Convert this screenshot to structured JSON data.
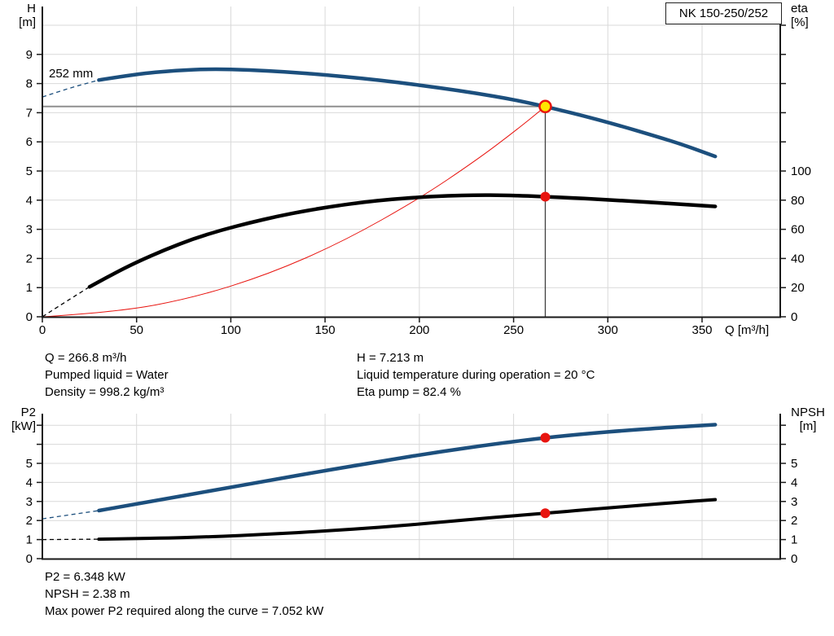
{
  "title_box": {
    "label": "NK 150-250/252"
  },
  "impeller_trim_label": "252 mm",
  "axes_titles": {
    "h1": "H",
    "h2": "[m]",
    "eta1": "eta",
    "eta2": "[%]",
    "q": "Q [m³/h]",
    "p2a": "P2",
    "p2b": "[kW]",
    "npsh1": "NPSH",
    "npsh2": "[m]"
  },
  "duty_info": {
    "q": "Q = 266.8 m³/h",
    "pumped_liquid": "Pumped liquid = Water",
    "density": "Density = 998.2 kg/m³",
    "h": "H = 7.213 m",
    "liquid_temp": "Liquid temperature during operation = 20 °C",
    "eta_pump": "Eta pump = 82.4 %"
  },
  "power_info": {
    "p2": "P2 = 6.348 kW",
    "npsh": "NPSH = 2.38 m",
    "max_p2": "Max power P2 required along the curve = 7.052 kW"
  },
  "colors": {
    "curve_blue": "#1c4f7d",
    "curve_black": "#000000",
    "red": "#e8140f",
    "marker_yellow": "#ffe600",
    "gridline": "#d9d9d9",
    "crosshair_h": "#8f8f8f",
    "crosshair_v": "#3f3f3f",
    "axis": "#1a1a1a"
  },
  "chart_data": [
    {
      "type": "line",
      "title": "NK 150-250/252",
      "xlabel": "Q [m³/h]",
      "ylabel_left": "H [m]",
      "ylabel_right": "eta [%]",
      "x_range": [
        0,
        391
      ],
      "x_ticks": [
        0,
        50,
        100,
        150,
        200,
        250,
        300,
        350
      ],
      "y_left_range": [
        0,
        10.6
      ],
      "y_left_ticks": [
        0,
        1,
        2,
        3,
        4,
        5,
        6,
        7,
        8,
        9
      ],
      "y_left_gridlines": [
        1,
        2,
        3,
        4,
        5,
        6,
        7,
        8,
        9,
        10
      ],
      "y_right_range": [
        0,
        100
      ],
      "y_right_ticks": [
        0,
        20,
        40,
        60,
        80,
        100
      ],
      "grid": true,
      "annotation": "252 mm",
      "series": [
        {
          "name": "head-curve-252mm",
          "axis": "left",
          "role": "head",
          "dash_until": 30,
          "points": [
            [
              0,
              7.54
            ],
            [
              15,
              7.86
            ],
            [
              30,
              8.12
            ],
            [
              50,
              8.33
            ],
            [
              70,
              8.45
            ],
            [
              90,
              8.5
            ],
            [
              110,
              8.47
            ],
            [
              130,
              8.4
            ],
            [
              150,
              8.3
            ],
            [
              170,
              8.18
            ],
            [
              190,
              8.03
            ],
            [
              210,
              7.86
            ],
            [
              230,
              7.67
            ],
            [
              250,
              7.45
            ],
            [
              266.8,
              7.213
            ],
            [
              285,
              6.93
            ],
            [
              305,
              6.58
            ],
            [
              325,
              6.2
            ],
            [
              340,
              5.9
            ],
            [
              357,
              5.5
            ]
          ]
        },
        {
          "name": "efficiency-curve",
          "axis": "right",
          "role": "efficiency",
          "dash_until": 25,
          "points": [
            [
              0,
              0
            ],
            [
              12,
              10
            ],
            [
              25,
              20.5
            ],
            [
              37,
              29
            ],
            [
              50,
              37.5
            ],
            [
              65,
              46
            ],
            [
              80,
              53.5
            ],
            [
              95,
              59.5
            ],
            [
              110,
              64.5
            ],
            [
              125,
              69
            ],
            [
              140,
              72.8
            ],
            [
              155,
              76
            ],
            [
              170,
              78.6
            ],
            [
              185,
              80.6
            ],
            [
              200,
              82
            ],
            [
              215,
              83
            ],
            [
              230,
              83.5
            ],
            [
              245,
              83.4
            ],
            [
              258,
              82.9
            ],
            [
              266.8,
              82.4
            ],
            [
              280,
              81.6
            ],
            [
              295,
              80.6
            ],
            [
              310,
              79.5
            ],
            [
              325,
              78.3
            ],
            [
              340,
              77.1
            ],
            [
              357,
              75.7
            ]
          ]
        },
        {
          "name": "affinity-parabola",
          "axis": "left",
          "role": "affinity",
          "dash_until": 0,
          "points": [
            [
              0,
              0
            ],
            [
              40,
              0.162
            ],
            [
              80,
              0.649
            ],
            [
              120,
              1.459
            ],
            [
              160,
              2.594
            ],
            [
              200,
              4.053
            ],
            [
              230,
              5.36
            ],
            [
              250,
              6.333
            ],
            [
              266.8,
              7.213
            ]
          ]
        }
      ],
      "duty_point": {
        "q": 266.8,
        "h": 7.213,
        "eta": 82.4
      }
    },
    {
      "type": "line",
      "title": "",
      "xlabel": "",
      "ylabel_left": "P2 [kW]",
      "ylabel_right": "NPSH [m]",
      "x_range": [
        0,
        391
      ],
      "x_gridlines": [
        50,
        100,
        150,
        200,
        250,
        300,
        350
      ],
      "y_range": [
        0,
        7.56
      ],
      "y_ticks_labeled": [
        0,
        1,
        2,
        3,
        4,
        5
      ],
      "y_ticks": [
        0,
        1,
        2,
        3,
        4,
        5,
        6,
        7
      ],
      "grid": true,
      "series": [
        {
          "name": "p2-curve",
          "axis": "left",
          "role": "p2",
          "dash_until": 30,
          "points": [
            [
              0,
              2.09
            ],
            [
              30,
              2.52
            ],
            [
              60,
              3.05
            ],
            [
              90,
              3.57
            ],
            [
              120,
              4.1
            ],
            [
              150,
              4.62
            ],
            [
              180,
              5.12
            ],
            [
              210,
              5.6
            ],
            [
              240,
              6.02
            ],
            [
              266.8,
              6.348
            ],
            [
              290,
              6.57
            ],
            [
              310,
              6.73
            ],
            [
              330,
              6.87
            ],
            [
              357,
              7.03
            ]
          ]
        },
        {
          "name": "npsh-curve",
          "axis": "right",
          "role": "npsh",
          "dash_until": 30,
          "points": [
            [
              0,
              1.0
            ],
            [
              30,
              1.02
            ],
            [
              60,
              1.07
            ],
            [
              90,
              1.15
            ],
            [
              120,
              1.28
            ],
            [
              150,
              1.45
            ],
            [
              180,
              1.65
            ],
            [
              210,
              1.9
            ],
            [
              240,
              2.17
            ],
            [
              266.8,
              2.38
            ],
            [
              290,
              2.58
            ],
            [
              310,
              2.74
            ],
            [
              330,
              2.9
            ],
            [
              357,
              3.1
            ]
          ]
        }
      ],
      "duty_point": {
        "q": 266.8,
        "p2": 6.348,
        "npsh": 2.38
      }
    }
  ]
}
